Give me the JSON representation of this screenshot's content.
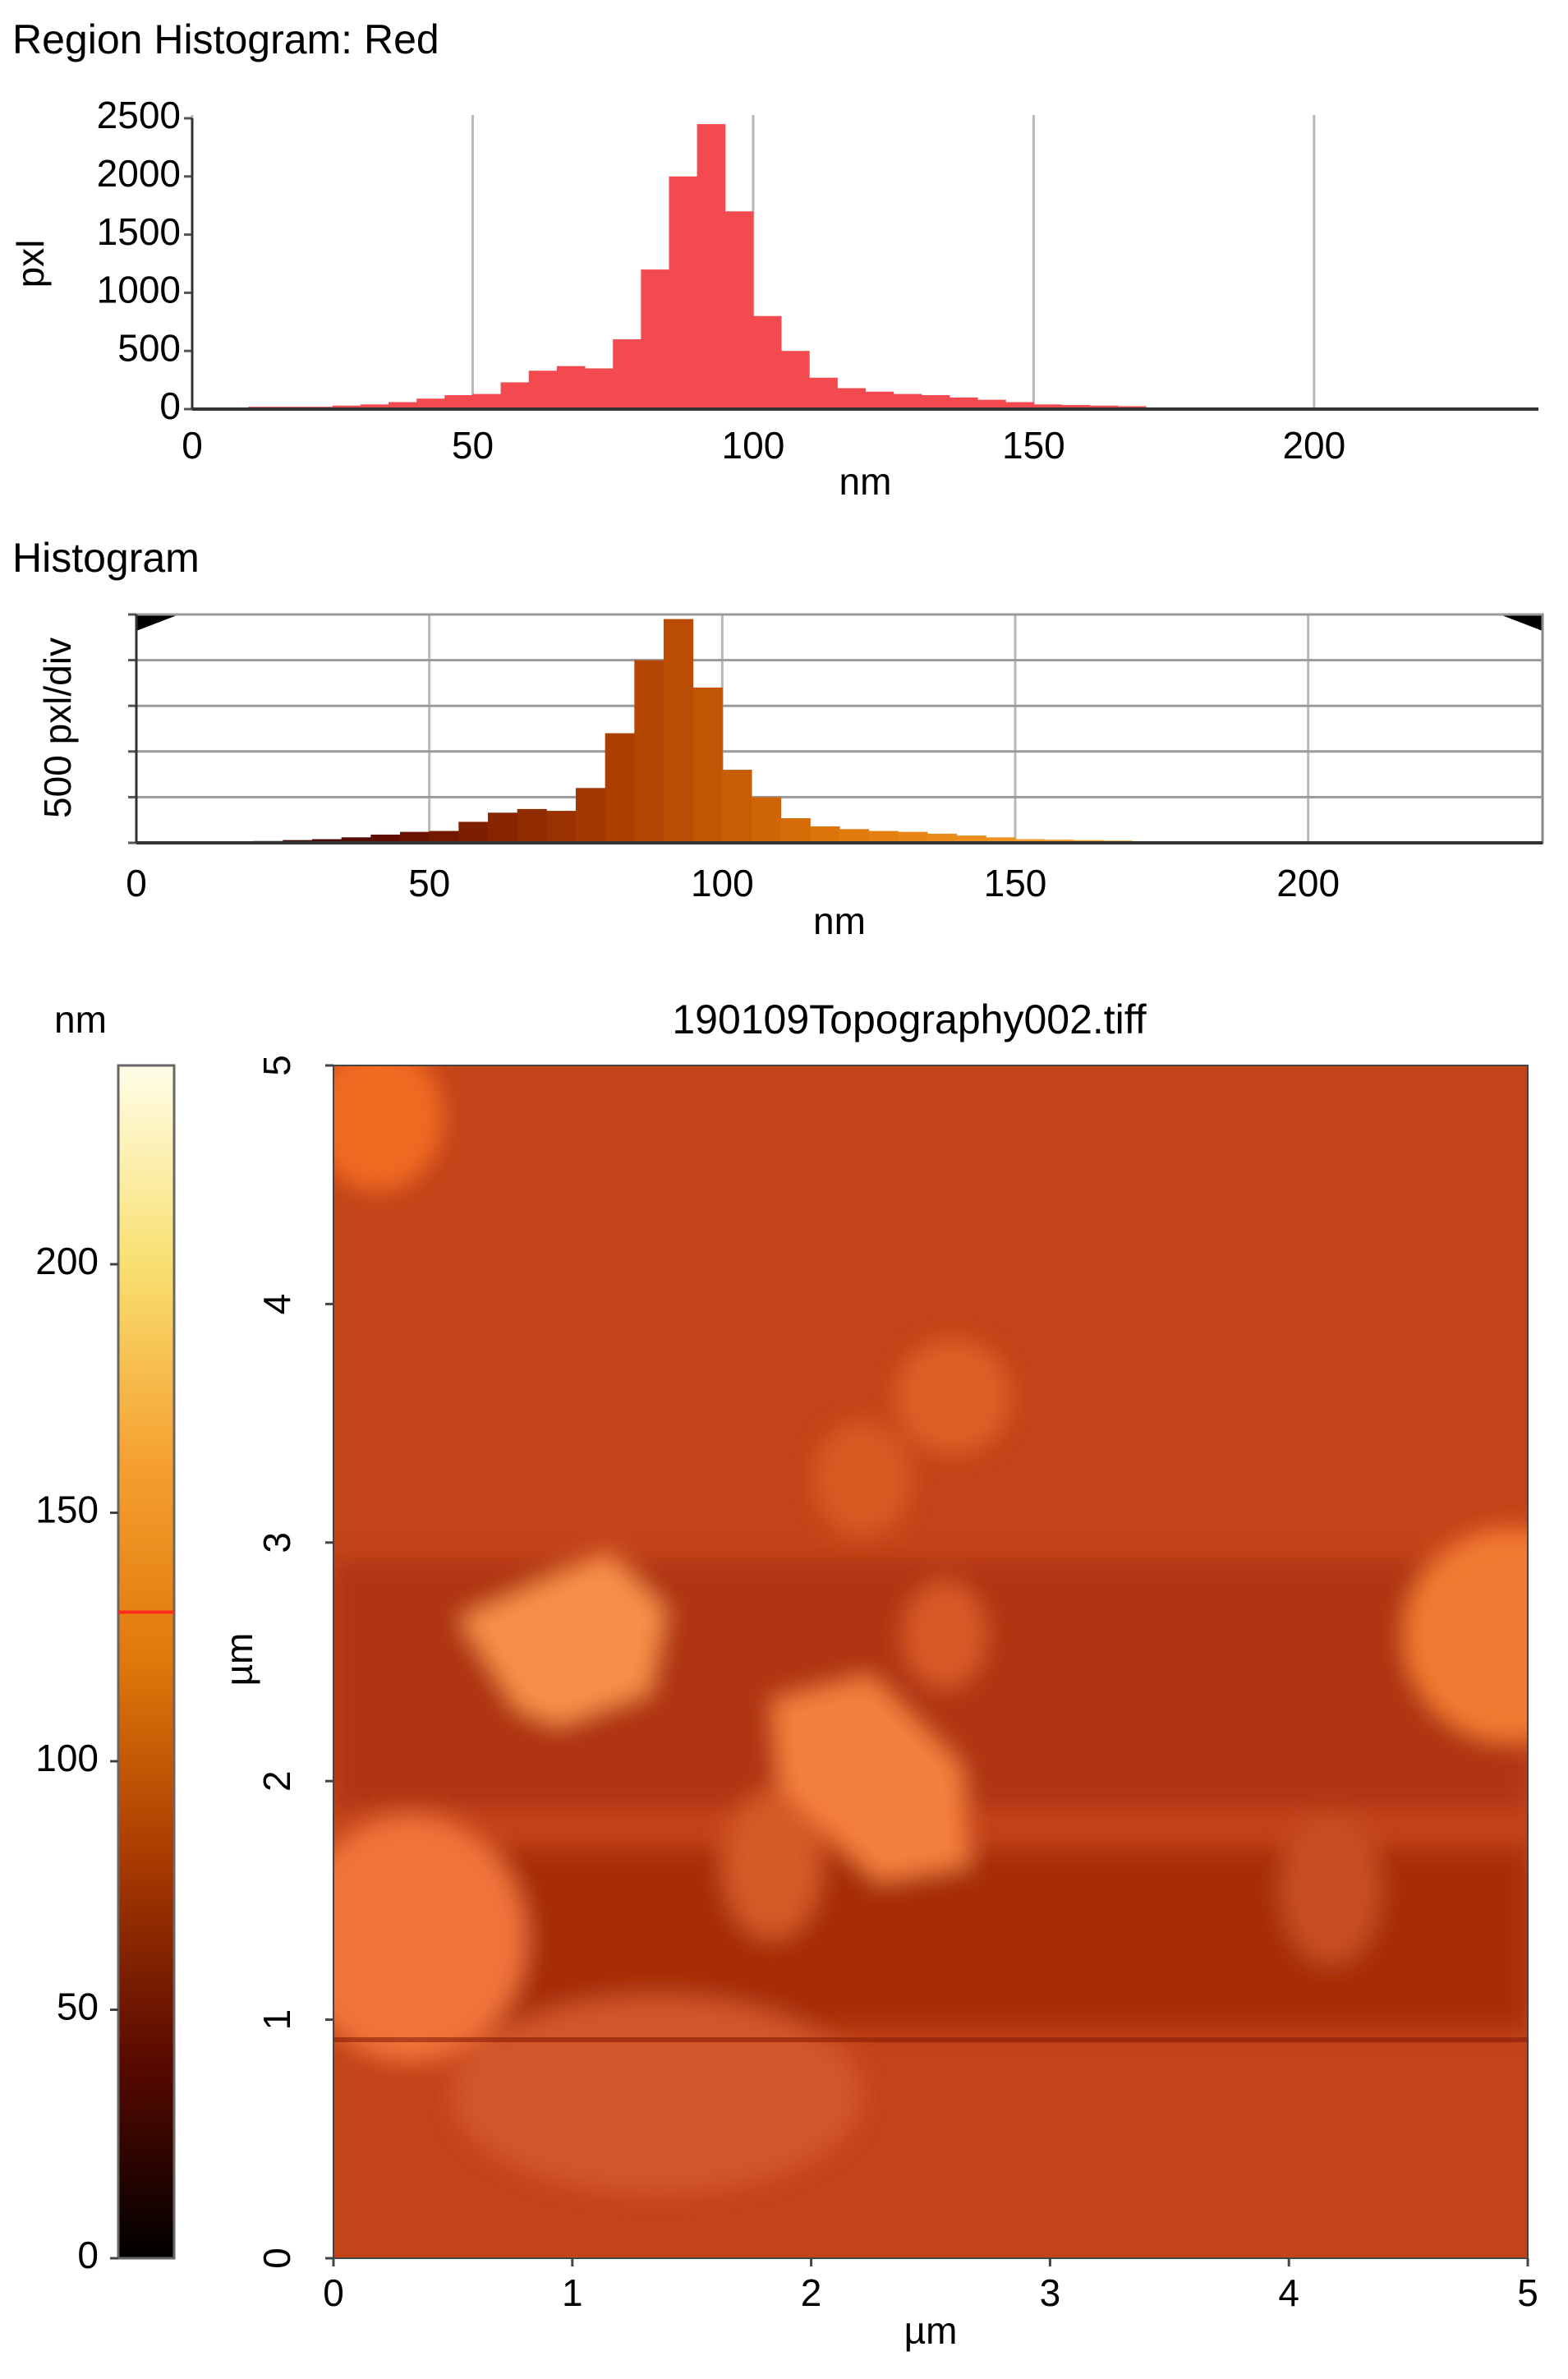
{
  "chart_data": [
    {
      "type": "histogram",
      "title": "Region Histogram: Red",
      "xlabel": "nm",
      "ylabel": "pxl",
      "bins": [
        5,
        10,
        15,
        20,
        25,
        30,
        35,
        40,
        45,
        50,
        55,
        60,
        65,
        70,
        75,
        80,
        85,
        90,
        95,
        100,
        105,
        110,
        115,
        120,
        125,
        130,
        135,
        140,
        145,
        150,
        155,
        160,
        165,
        170,
        175
      ],
      "values": [
        10,
        20,
        20,
        20,
        30,
        40,
        60,
        90,
        120,
        130,
        230,
        330,
        370,
        350,
        600,
        1200,
        2000,
        2450,
        1700,
        800,
        500,
        270,
        180,
        150,
        130,
        120,
        100,
        80,
        60,
        40,
        35,
        30,
        25,
        10
      ],
      "color": "#f24a4e",
      "xlim": [
        0,
        240
      ],
      "xticks": [
        0,
        50,
        100,
        150,
        200
      ],
      "ylim": [
        0,
        2500
      ],
      "yticks": [
        0,
        500,
        1000,
        1500,
        2000,
        2500
      ],
      "ytick_labels": true,
      "grid": "x"
    },
    {
      "type": "histogram",
      "title": "Histogram",
      "xlabel": "nm",
      "ylabel": "500 pxl/div",
      "bins": [
        5,
        10,
        15,
        20,
        25,
        30,
        35,
        40,
        45,
        50,
        55,
        60,
        65,
        70,
        75,
        80,
        85,
        90,
        95,
        100,
        105,
        110,
        115,
        120,
        125,
        130,
        135,
        140,
        145,
        150,
        155,
        160,
        165,
        170,
        175
      ],
      "values": [
        0,
        0,
        10,
        20,
        30,
        40,
        60,
        90,
        120,
        130,
        230,
        330,
        370,
        350,
        600,
        1200,
        2000,
        2450,
        1700,
        800,
        500,
        270,
        180,
        150,
        130,
        120,
        100,
        80,
        60,
        40,
        35,
        30,
        25,
        10
      ],
      "colormap": [
        "#000000",
        "#5a0a00",
        "#a83a00",
        "#e0780a",
        "#f5a030",
        "#f8e070",
        "#fffde8"
      ],
      "xlim": [
        0,
        240
      ],
      "xticks": [
        0,
        50,
        100,
        150,
        200
      ],
      "ylim": [
        0,
        2500
      ],
      "yticks": [
        0,
        500,
        1000,
        1500,
        2000,
        2500
      ],
      "ytick_labels": false,
      "grid": "both"
    },
    {
      "type": "image",
      "title": "190109Topography002.tiff",
      "xlabel": "µm",
      "ylabel": "µm",
      "xlim": [
        0,
        5
      ],
      "xticks": [
        0,
        1,
        2,
        3,
        4,
        5
      ],
      "ylim": [
        0,
        5
      ],
      "yticks": [
        0,
        1,
        2,
        3,
        4,
        5
      ],
      "colorbar": {
        "label": "nm",
        "lim": [
          0,
          240
        ],
        "ticks": [
          0,
          50,
          100,
          150,
          200
        ],
        "marker": 130,
        "marker_color": "#ff2a1a",
        "colormap": [
          "#000000",
          "#5a0a00",
          "#a83a00",
          "#e0780a",
          "#f5a030",
          "#f8e070",
          "#fffde8"
        ]
      }
    }
  ]
}
